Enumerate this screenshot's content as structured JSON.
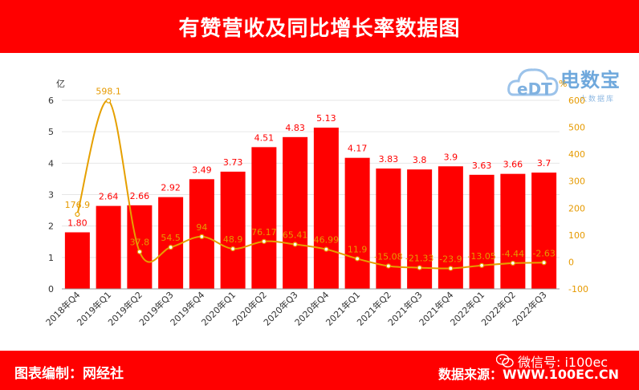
{
  "header": {
    "title": "有赞营收及同比增长率数据图"
  },
  "footer": {
    "credit": "图表编制：网经社",
    "source": "数据来源：WWW.100EC.CN",
    "wechat": "微信号: i100ec"
  },
  "logo": {
    "name": "电数宝",
    "sub": "大数据库",
    "mark": "eDT"
  },
  "colors": {
    "bar": "#ff0000",
    "line": "#e6a000",
    "bar_label": "#ff0000",
    "line_label": "#e69a00",
    "header_bg": "#ff0000"
  },
  "chart_data": {
    "type": "bar",
    "categories": [
      "2018年Q4",
      "2019年Q1",
      "2019年Q2",
      "2019年Q3",
      "2019年Q4",
      "2020年Q1",
      "2020年Q2",
      "2020年Q3",
      "2020年Q4",
      "2021年Q1",
      "2021年Q2",
      "2021年Q3",
      "2021年Q4",
      "2022年Q1",
      "2022年Q2",
      "2022年Q3"
    ],
    "series": [
      {
        "values": [
          1.8,
          2.64,
          2.66,
          2.92,
          3.49,
          3.73,
          4.51,
          4.83,
          5.13,
          4.17,
          3.83,
          3.8,
          3.9,
          3.63,
          3.66,
          3.7
        ],
        "value_labels": [
          "1.80",
          "2.64",
          "2.66",
          "2.92",
          "3.49",
          "3.73",
          "4.51",
          "4.83",
          "5.13",
          "4.17",
          "3.83",
          "3.8",
          "3.9",
          "3.63",
          "3.66",
          "3.7"
        ],
        "axis": "left"
      },
      {
        "type": "line",
        "values": [
          176.9,
          598.1,
          37.8,
          54.5,
          94,
          48.9,
          76.17,
          65.41,
          46.99,
          11.9,
          -15.08,
          -21.33,
          -23.9,
          -13.05,
          -4.44,
          -2.63
        ],
        "value_labels": [
          "176.9",
          "598.1",
          "37.8",
          "54.5",
          "94",
          "48.9",
          "76.17",
          "65.41",
          "46.99",
          "11.9",
          "-15.08",
          "-21.33",
          "-23.9",
          "-13.05",
          "-4.44",
          "-2.63"
        ],
        "axis": "right"
      }
    ],
    "yleft": {
      "label": "亿",
      "ylim": [
        0,
        6
      ],
      "ticks": [
        "0",
        "1",
        "2",
        "3",
        "4",
        "5",
        "6"
      ]
    },
    "yright": {
      "label": "%",
      "ylim": [
        -100,
        600
      ],
      "ticks": [
        "-100",
        "0",
        "100",
        "200",
        "300",
        "400",
        "500",
        "600"
      ]
    },
    "grid": true,
    "legend": "none"
  }
}
